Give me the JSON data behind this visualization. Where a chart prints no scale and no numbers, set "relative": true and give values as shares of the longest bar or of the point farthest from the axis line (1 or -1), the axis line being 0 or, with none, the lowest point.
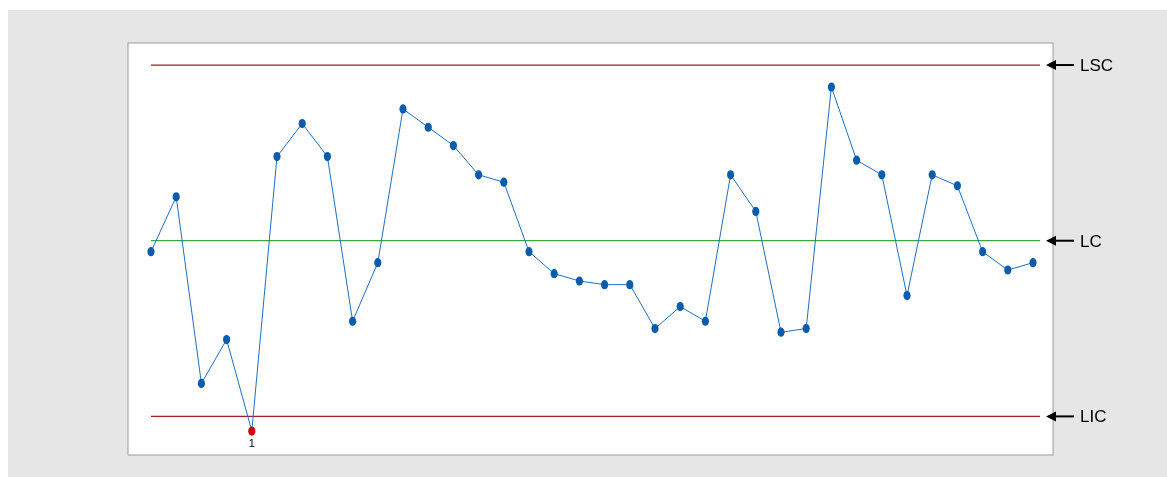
{
  "chart_data": {
    "type": "line",
    "relative": true,
    "categories": [
      null,
      null,
      null,
      null,
      null,
      null,
      null,
      null,
      null,
      null,
      null,
      null,
      null,
      null,
      null,
      null,
      null,
      null,
      null,
      null,
      null,
      null,
      null,
      null,
      null,
      null,
      null,
      null,
      null,
      null,
      null,
      null,
      null,
      null,
      null,
      null
    ],
    "series": [
      {
        "color": "#1f6fc4",
        "values": [
          0.55,
          0.7,
          0.19,
          0.31,
          0.06,
          0.81,
          0.9,
          0.81,
          0.36,
          0.52,
          0.94,
          0.89,
          0.84,
          0.76,
          0.74,
          0.55,
          0.49,
          0.47,
          0.46,
          0.46,
          0.34,
          0.4,
          0.36,
          0.76,
          0.66,
          0.33,
          0.34,
          1,
          0.8,
          0.76,
          0.43,
          0.76,
          0.73,
          0.55,
          0.5,
          0.52
        ],
        "colors": [
          "#0b5cad",
          "#0b5cad",
          "#0b5cad",
          "#0b5cad",
          "#d40000",
          "#0b5cad",
          "#0b5cad",
          "#0b5cad",
          "#0b5cad",
          "#0b5cad",
          "#0b5cad",
          "#0b5cad",
          "#0b5cad",
          "#0b5cad",
          "#0b5cad",
          "#0b5cad",
          "#0b5cad",
          "#0b5cad",
          "#0b5cad",
          "#0b5cad",
          "#0b5cad",
          "#0b5cad",
          "#0b5cad",
          "#0b5cad",
          "#0b5cad",
          "#0b5cad",
          "#0b5cad",
          "#0b5cad",
          "#0b5cad",
          "#0b5cad",
          "#0b5cad",
          "#0b5cad",
          "#0b5cad",
          "#0b5cad",
          "#0b5cad",
          "#0b5cad"
        ]
      }
    ],
    "marker": "circle",
    "line_style": "solid",
    "ref_lines": [
      {
        "axis": "y",
        "value": 1.06,
        "label": "LSC",
        "color": "#a31f2a"
      },
      {
        "axis": "y",
        "value": 0.58,
        "label": "LC",
        "color": "#3aa542"
      },
      {
        "axis": "y",
        "value": 0.1,
        "label": "LIC",
        "color": "#a31f2a"
      }
    ],
    "annotations": [
      {
        "text": "1",
        "y": 0.06
      }
    ]
  }
}
